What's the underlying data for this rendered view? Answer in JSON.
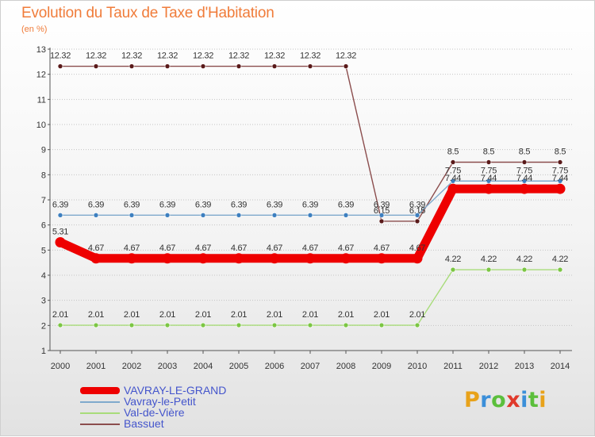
{
  "chart_data": {
    "type": "line",
    "title": "Evolution du Taux de Taxe d'Habitation",
    "ylabel": "(en %)",
    "xlabel": "",
    "ylim": [
      1,
      13
    ],
    "yticks": [
      "1",
      "2",
      "3",
      "4",
      "5",
      "6",
      "7",
      "8",
      "9",
      "10",
      "11",
      "12",
      "13"
    ],
    "categories": [
      "2000",
      "2001",
      "2002",
      "2003",
      "2004",
      "2005",
      "2006",
      "2007",
      "2008",
      "2009",
      "2010",
      "2011",
      "2012",
      "2013",
      "2014"
    ],
    "series": [
      {
        "name": "Bassuet",
        "color": "#8b4d4d",
        "marker_color": "#5a1a1a",
        "values": [
          12.32,
          12.32,
          12.32,
          12.32,
          12.32,
          12.32,
          12.32,
          12.32,
          12.32,
          6.15,
          6.15,
          8.5,
          8.5,
          8.5,
          8.5
        ],
        "labels": [
          "12.32",
          "12.32",
          "12.32",
          "12.32",
          "12.32",
          "12.32",
          "12.32",
          "12.32",
          "12.32",
          "6.15",
          "6.15",
          "8.5",
          "8.5",
          "8.5",
          "8.5"
        ]
      },
      {
        "name": "Vavray-le-Petit",
        "color": "#7fa9cc",
        "marker_color": "#3d7fbf",
        "values": [
          6.39,
          6.39,
          6.39,
          6.39,
          6.39,
          6.39,
          6.39,
          6.39,
          6.39,
          6.39,
          6.39,
          7.75,
          7.75,
          7.75,
          7.75
        ],
        "labels": [
          "6.39",
          "6.39",
          "6.39",
          "6.39",
          "6.39",
          "6.39",
          "6.39",
          "6.39",
          "6.39",
          "6.39",
          "6.39",
          "7.75",
          "7.75",
          "7.75",
          "7.75"
        ]
      },
      {
        "name": "Val-de-Vière",
        "color": "#a8dc7a",
        "marker_color": "#7cc644",
        "values": [
          2.01,
          2.01,
          2.01,
          2.01,
          2.01,
          2.01,
          2.01,
          2.01,
          2.01,
          2.01,
          2.01,
          4.22,
          4.22,
          4.22,
          4.22
        ],
        "labels": [
          "2.01",
          "2.01",
          "2.01",
          "2.01",
          "2.01",
          "2.01",
          "2.01",
          "2.01",
          "2.01",
          "2.01",
          "2.01",
          "4.22",
          "4.22",
          "4.22",
          "4.22"
        ]
      },
      {
        "name": "VAVRAY-LE-GRAND",
        "color": "#ee0000",
        "marker_color": "#ee0000",
        "thick": true,
        "values": [
          5.31,
          4.67,
          4.67,
          4.67,
          4.67,
          4.67,
          4.67,
          4.67,
          4.67,
          4.67,
          4.67,
          7.44,
          7.44,
          7.44,
          7.44
        ],
        "labels": [
          "5.31",
          "4.67",
          "4.67",
          "4.67",
          "4.67",
          "4.67",
          "4.67",
          "4.67",
          "4.67",
          "4.67",
          "4.67",
          "7.44",
          "7.44",
          "7.44",
          "7.44"
        ]
      }
    ],
    "legend": [
      {
        "name": "VAVRAY-LE-GRAND",
        "color": "#ee0000",
        "thick": true
      },
      {
        "name": "Vavray-le-Petit",
        "color": "#7fa9cc",
        "thick": false
      },
      {
        "name": "Val-de-Vière",
        "color": "#a8dc7a",
        "thick": false
      },
      {
        "name": "Bassuet",
        "color": "#8b4d4d",
        "thick": false
      }
    ]
  },
  "logo": {
    "letters": [
      "P",
      "r",
      "o",
      "x",
      "i",
      "t",
      "i"
    ],
    "colors": [
      "#e8a21a",
      "#3b8fd9",
      "#5bbf3c",
      "#e0392b",
      "#3b8fd9",
      "#5bbf3c",
      "#e8a21a"
    ]
  }
}
